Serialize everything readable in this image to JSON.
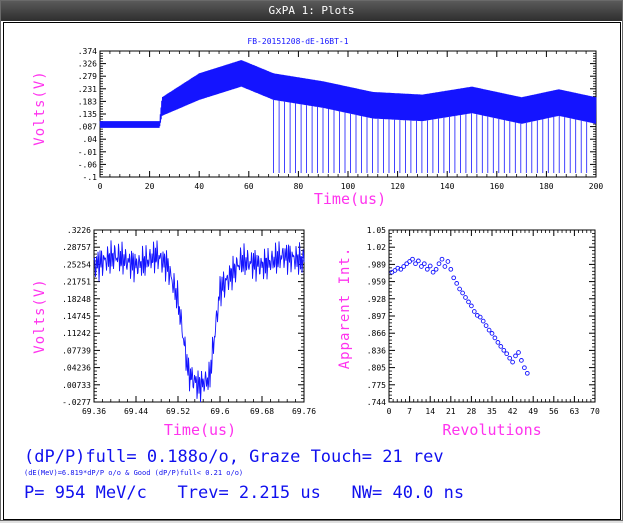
{
  "window": {
    "title": "GxPA 1: Plots"
  },
  "colors": {
    "trace": "#1414ff",
    "axis_label": "#ff33ee",
    "info_text": "#1010ee",
    "frame": "#000000"
  },
  "plots": {
    "top": {
      "title": "FB-20151208-dE-16BT-1",
      "ylabel": "Volts(V)",
      "xlabel": "Time(us)",
      "yticks": [
        ".374",
        ".326",
        ".279",
        ".231",
        ".183",
        ".135",
        ".087",
        ".04",
        "-.01",
        "-.06",
        "-.1"
      ],
      "xticks": [
        "0",
        "20",
        "40",
        "60",
        "80",
        "100",
        "120",
        "140",
        "160",
        "180",
        "200"
      ]
    },
    "bottom_left": {
      "ylabel": "Volts(V)",
      "xlabel": "Time(us)",
      "yticks": [
        ".3226",
        ".28757",
        ".25254",
        ".21751",
        ".18248",
        ".14745",
        ".11242",
        ".07739",
        ".04236",
        ".00733",
        "-.0277"
      ],
      "xticks": [
        "69.36",
        "69.44",
        "69.52",
        "69.6",
        "69.68",
        "69.76"
      ]
    },
    "bottom_right": {
      "ylabel": "Apparent Int.",
      "xlabel": "Revolutions",
      "yticks": [
        "1.05",
        "1.02",
        ".989",
        ".959",
        ".928",
        ".897",
        ".866",
        ".836",
        ".805",
        ".775",
        ".744"
      ],
      "xticks": [
        "0",
        "7",
        "14",
        "21",
        "28",
        "35",
        "42",
        "49",
        "56",
        "63",
        "70"
      ]
    }
  },
  "chart_data": [
    {
      "type": "line",
      "title": "FB-20151208-dE-16BT-1",
      "xlabel": "Time(us)",
      "ylabel": "Volts(V)",
      "xlim": [
        0,
        200
      ],
      "ylim": [
        -0.1,
        0.374
      ],
      "series": [
        {
          "x": [
            0,
            24,
            25,
            40,
            57,
            70,
            90,
            110,
            130,
            150,
            170,
            185,
            200
          ],
          "y_upper": [
            0.11,
            0.11,
            0.2,
            0.29,
            0.34,
            0.29,
            0.26,
            0.22,
            0.21,
            0.24,
            0.2,
            0.23,
            0.2
          ],
          "y_lower": [
            0.085,
            0.085,
            0.13,
            0.19,
            0.24,
            0.19,
            0.16,
            0.12,
            0.11,
            0.14,
            0.1,
            0.13,
            0.1
          ]
        }
      ]
    },
    {
      "type": "line",
      "xlabel": "Time(us)",
      "ylabel": "Volts(V)",
      "xlim": [
        69.36,
        69.76
      ],
      "ylim": [
        -0.0277,
        0.3226
      ],
      "series": [
        {
          "x": [
            69.36,
            69.4,
            69.44,
            69.48,
            69.5,
            69.52,
            69.54,
            69.56,
            69.58,
            69.6,
            69.64,
            69.68,
            69.72,
            69.76
          ],
          "y": [
            0.25,
            0.27,
            0.25,
            0.27,
            0.25,
            0.18,
            0.03,
            0.005,
            0.02,
            0.2,
            0.26,
            0.25,
            0.27,
            0.26
          ]
        }
      ]
    },
    {
      "type": "scatter",
      "xlabel": "Revolutions",
      "ylabel": "Apparent Int.",
      "xlim": [
        0,
        70
      ],
      "ylim": [
        0.744,
        1.05
      ],
      "series": [
        {
          "x": [
            1,
            2,
            3,
            4,
            5,
            6,
            7,
            8,
            9,
            10,
            11,
            12,
            13,
            14,
            15,
            16,
            17,
            18,
            19,
            20,
            21,
            22,
            23,
            24,
            25,
            26,
            27,
            28,
            29,
            30,
            31,
            32,
            33,
            34,
            35,
            36,
            37,
            38,
            39,
            40,
            41,
            42,
            43,
            44,
            45,
            46,
            47
          ],
          "y": [
            0.975,
            0.978,
            0.982,
            0.98,
            0.985,
            0.99,
            0.994,
            0.998,
            0.99,
            0.995,
            0.985,
            0.99,
            0.98,
            0.986,
            0.975,
            0.98,
            0.99,
            0.998,
            0.985,
            0.994,
            0.98,
            0.965,
            0.955,
            0.945,
            0.938,
            0.93,
            0.922,
            0.915,
            0.905,
            0.898,
            0.895,
            0.888,
            0.88,
            0.872,
            0.866,
            0.858,
            0.85,
            0.843,
            0.836,
            0.83,
            0.822,
            0.815,
            0.826,
            0.832,
            0.818,
            0.805,
            0.795
          ]
        }
      ]
    }
  ],
  "info": {
    "line1": "(dP/P)full= 0.188o/o, Graze Touch= 21 rev",
    "line2": "(dE(MeV)=6.819*dP/P o/o & Good (dP/P)full< 0.21 o/o)",
    "line3": "P= 954 MeV/c   Trev= 2.215 us   NW= 40.0 ns"
  }
}
